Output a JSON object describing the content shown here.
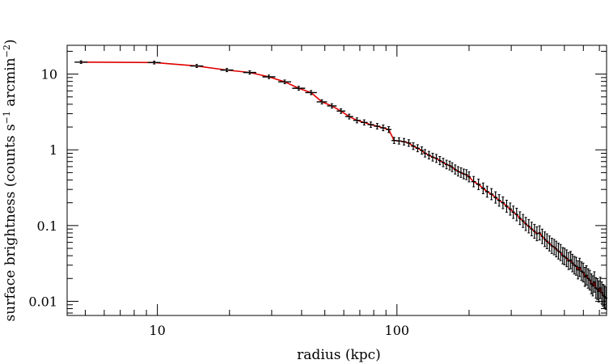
{
  "chart_data": {
    "type": "line",
    "xlabel": "radius (kpc)",
    "ylabel_parts": [
      "surface brightness (counts s",
      "−1",
      " arcmin",
      "−2",
      ")"
    ],
    "xscale": "log",
    "yscale": "log",
    "xlim": [
      4.2,
      750
    ],
    "ylim": [
      0.0065,
      24
    ],
    "x_ticks": [
      {
        "value": 10,
        "label": "10"
      },
      {
        "value": 100,
        "label": "100"
      }
    ],
    "y_ticks": [
      {
        "value": 10,
        "label": "10"
      },
      {
        "value": 1,
        "label": "1"
      },
      {
        "value": 0.1,
        "label": "0.1"
      },
      {
        "value": 0.01,
        "label": "0.01"
      }
    ],
    "grid": false,
    "colors": {
      "model": "#e00000",
      "data": "#000000"
    },
    "series": [
      {
        "x": [
          4.8,
          9.7,
          14.6,
          19.5,
          24.3,
          29.2,
          34.0,
          38.9,
          43.8,
          48.6,
          53.5,
          58.4,
          63.2,
          68.1,
          73.0,
          77.8,
          82.7,
          87.6,
          92.4,
          97.3,
          102,
          107,
          112,
          117,
          122,
          127,
          131,
          136,
          141,
          146,
          151,
          156,
          161,
          166,
          170,
          175,
          180,
          185,
          190,
          195,
          200,
          209,
          219,
          229,
          238,
          248,
          258,
          267,
          277,
          287,
          297,
          306,
          316,
          326,
          336,
          345,
          355,
          365,
          375,
          384,
          394,
          404,
          414,
          423,
          433,
          443,
          453,
          462,
          472,
          482,
          492,
          501,
          511,
          521,
          531,
          540,
          550,
          560,
          570,
          579,
          589,
          599,
          609,
          618,
          628,
          638,
          648,
          657,
          667,
          677,
          687,
          696,
          706,
          716,
          726,
          735,
          745
        ],
        "y": [
          14.4,
          14.2,
          12.8,
          11.3,
          10.5,
          9.2,
          7.9,
          6.5,
          5.7,
          4.3,
          3.8,
          3.25,
          2.75,
          2.45,
          2.3,
          2.15,
          2.05,
          1.95,
          1.85,
          1.33,
          1.31,
          1.28,
          1.23,
          1.12,
          1.05,
          0.98,
          0.9,
          0.85,
          0.8,
          0.77,
          0.72,
          0.68,
          0.64,
          0.62,
          0.59,
          0.55,
          0.52,
          0.5,
          0.48,
          0.47,
          0.44,
          0.38,
          0.35,
          0.31,
          0.28,
          0.26,
          0.235,
          0.215,
          0.2,
          0.18,
          0.165,
          0.15,
          0.14,
          0.125,
          0.115,
          0.105,
          0.098,
          0.09,
          0.084,
          0.078,
          0.08,
          0.072,
          0.066,
          0.062,
          0.058,
          0.054,
          0.052,
          0.049,
          0.046,
          0.044,
          0.04,
          0.039,
          0.037,
          0.034,
          0.035,
          0.032,
          0.03,
          0.029,
          0.026,
          0.028,
          0.025,
          0.024,
          0.021,
          0.022,
          0.02,
          0.019,
          0.017,
          0.016,
          0.018,
          0.015,
          0.0145,
          0.0135,
          0.015,
          0.013,
          0.012,
          0.0115,
          0.011
        ]
      }
    ]
  }
}
